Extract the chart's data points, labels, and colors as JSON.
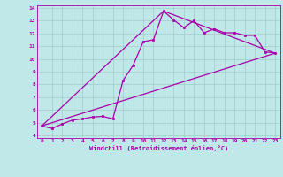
{
  "xlabel": "Windchill (Refroidissement éolien,°C)",
  "bg_color": "#c0e8e8",
  "grid_color": "#a0cccc",
  "line_color": "#aa00aa",
  "spine_color": "#aa00aa",
  "xlim": [
    -0.5,
    23.5
  ],
  "ylim": [
    3.8,
    14.2
  ],
  "xticks": [
    0,
    1,
    2,
    3,
    4,
    5,
    6,
    7,
    8,
    9,
    10,
    11,
    12,
    13,
    14,
    15,
    16,
    17,
    18,
    19,
    20,
    21,
    22,
    23
  ],
  "yticks": [
    4,
    5,
    6,
    7,
    8,
    9,
    10,
    11,
    12,
    13,
    14
  ],
  "line1_x": [
    0,
    1,
    2,
    3,
    4,
    5,
    6,
    7,
    8,
    9,
    10,
    11,
    12,
    13,
    14,
    15,
    16,
    17,
    18,
    19,
    20,
    21,
    22,
    23
  ],
  "line1_y": [
    4.75,
    4.55,
    4.9,
    5.2,
    5.3,
    5.45,
    5.5,
    5.3,
    8.3,
    9.5,
    11.35,
    11.5,
    13.75,
    13.05,
    12.45,
    13.0,
    12.05,
    12.35,
    12.05,
    12.05,
    11.85,
    11.85,
    10.55,
    10.45
  ],
  "line2_x": [
    0,
    23
  ],
  "line2_y": [
    4.75,
    10.45
  ],
  "line3_x": [
    0,
    12,
    23
  ],
  "line3_y": [
    4.75,
    13.75,
    10.45
  ]
}
